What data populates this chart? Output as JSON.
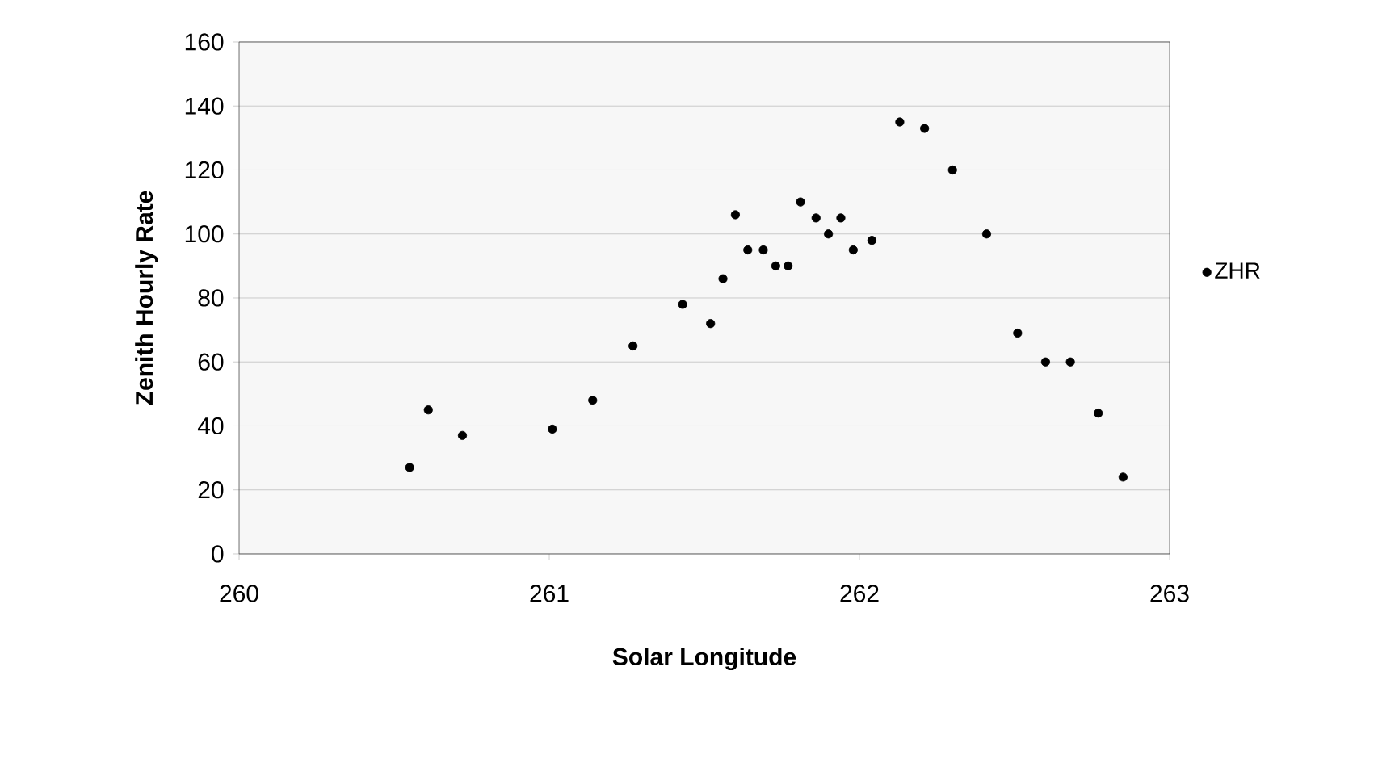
{
  "chart_data": {
    "type": "scatter",
    "xlabel": "Solar Longitude",
    "ylabel": "Zenith Hourly Rate",
    "xlim": [
      260,
      263
    ],
    "xticks": [
      260,
      261,
      262,
      263
    ],
    "ylim": [
      0,
      160
    ],
    "yticks": [
      0,
      20,
      40,
      60,
      80,
      100,
      120,
      140,
      160
    ],
    "grid": "y",
    "legend": "right",
    "series": [
      {
        "name": "ZHR",
        "color": "#000000",
        "x": [
          260.55,
          260.61,
          260.72,
          261.01,
          261.14,
          261.27,
          261.43,
          261.52,
          261.56,
          261.6,
          261.64,
          261.69,
          261.73,
          261.77,
          261.81,
          261.86,
          261.9,
          261.94,
          261.98,
          262.04,
          262.13,
          262.21,
          262.3,
          262.41,
          262.51,
          262.6,
          262.68,
          262.77,
          262.85
        ],
        "values": [
          27,
          45,
          37,
          39,
          48,
          65,
          78,
          72,
          86,
          106,
          95,
          95,
          90,
          90,
          110,
          105,
          100,
          105,
          95,
          98,
          135,
          133,
          120,
          100,
          69,
          60,
          60,
          44,
          24
        ]
      }
    ]
  }
}
